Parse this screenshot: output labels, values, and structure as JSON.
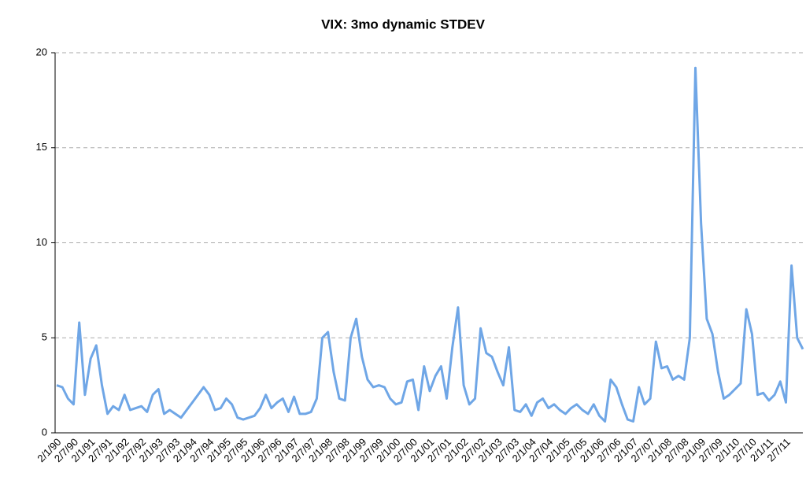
{
  "chart_data": {
    "type": "line",
    "title": "VIX: 3mo dynamic STDEV",
    "categories": [
      "2/1/90",
      null,
      null,
      "2/7/90",
      null,
      null,
      "2/1/91",
      null,
      null,
      "2/7/91",
      null,
      null,
      "2/1/92",
      null,
      null,
      "2/7/92",
      null,
      null,
      "2/1/93",
      null,
      null,
      "2/7/93",
      null,
      null,
      "2/1/94",
      null,
      null,
      "2/7/94",
      null,
      null,
      "2/1/95",
      null,
      null,
      "2/7/95",
      null,
      null,
      "2/1/96",
      null,
      null,
      "2/7/96",
      null,
      null,
      "2/1/97",
      null,
      null,
      "2/7/97",
      null,
      null,
      "2/1/98",
      null,
      null,
      "2/7/98",
      null,
      null,
      "2/1/99",
      null,
      null,
      "2/7/99",
      null,
      null,
      "2/1/00",
      null,
      null,
      "2/7/00",
      null,
      null,
      "2/1/01",
      null,
      null,
      "2/7/01",
      null,
      null,
      "2/1/02",
      null,
      null,
      "2/7/02",
      null,
      null,
      "2/1/03",
      null,
      null,
      "2/7/03",
      null,
      null,
      "2/1/04",
      null,
      null,
      "2/7/04",
      null,
      null,
      "2/1/05",
      null,
      null,
      "2/7/05",
      null,
      null,
      "2/1/06",
      null,
      null,
      "2/7/06",
      null,
      null,
      "2/1/07",
      null,
      null,
      "2/7/07",
      null,
      null,
      "2/1/08",
      null,
      null,
      "2/7/08",
      null,
      null,
      "2/1/09",
      null,
      null,
      "2/7/09",
      null,
      null,
      "2/1/10",
      null,
      null,
      "2/7/10",
      null,
      null,
      "2/1/11",
      null,
      null,
      "2/7/11",
      null,
      null,
      null
    ],
    "series": [
      {
        "color": "#6fa6e6",
        "values": [
          2.5,
          2.4,
          1.8,
          1.5,
          5.8,
          2.0,
          3.9,
          4.6,
          2.5,
          1.0,
          1.4,
          1.2,
          2.0,
          1.2,
          1.3,
          1.4,
          1.1,
          2.0,
          2.3,
          1.0,
          1.2,
          1.0,
          0.8,
          1.2,
          1.6,
          2.0,
          2.4,
          2.0,
          1.2,
          1.3,
          1.8,
          1.5,
          0.8,
          0.7,
          0.8,
          0.9,
          1.3,
          2.0,
          1.3,
          1.6,
          1.8,
          1.1,
          1.9,
          1.0,
          1.0,
          1.1,
          1.8,
          5.0,
          5.3,
          3.2,
          1.8,
          1.7,
          5.0,
          6.0,
          4.0,
          2.8,
          2.4,
          2.5,
          2.4,
          1.8,
          1.5,
          1.6,
          2.7,
          2.8,
          1.2,
          3.5,
          2.2,
          3.0,
          3.5,
          1.8,
          4.5,
          6.6,
          2.5,
          1.5,
          1.8,
          5.5,
          4.2,
          4.0,
          3.2,
          2.5,
          4.5,
          1.2,
          1.1,
          1.5,
          0.9,
          1.6,
          1.8,
          1.3,
          1.5,
          1.2,
          1.0,
          1.3,
          1.5,
          1.2,
          1.0,
          1.5,
          0.9,
          0.6,
          2.8,
          2.4,
          1.5,
          0.7,
          0.6,
          2.4,
          1.5,
          1.8,
          4.8,
          3.4,
          3.5,
          2.8,
          3.0,
          2.8,
          5.0,
          19.2,
          11.0,
          6.0,
          5.2,
          3.2,
          1.8,
          2.0,
          2.3,
          2.6,
          6.5,
          5.2,
          2.0,
          2.1,
          1.7,
          2.0,
          2.7,
          1.6,
          8.8,
          5.0,
          4.4
        ]
      }
    ],
    "ylim": [
      0,
      20
    ],
    "yticks": [
      0,
      5,
      10,
      15,
      20
    ],
    "grid": true
  }
}
